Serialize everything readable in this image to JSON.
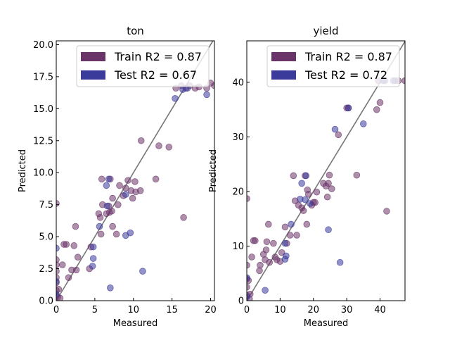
{
  "chart_data": [
    {
      "type": "scatter",
      "title": "ton",
      "xlabel": "Measured",
      "ylabel": "Predicted",
      "xlim": [
        0,
        20.5
      ],
      "ylim": [
        0,
        20.3
      ],
      "xticks": [
        0,
        5,
        10,
        15,
        20
      ],
      "xtick_labels": [
        "0",
        "5",
        "10",
        "15",
        "20"
      ],
      "yticks": [
        0.0,
        2.5,
        5.0,
        7.5,
        10.0,
        12.5,
        15.0,
        17.5,
        20.0
      ],
      "ytick_labels": [
        "0.0",
        "2.5",
        "5.0",
        "7.5",
        "10.0",
        "12.5",
        "15.0",
        "17.5",
        "20.0"
      ],
      "diagonal": true,
      "series": [
        {
          "name": "Train R2 = 0.87",
          "color": "#6b3469",
          "points": [
            [
              0.0,
              7.6
            ],
            [
              0.0,
              3.2
            ],
            [
              0.0,
              2.8
            ],
            [
              0.0,
              2.3
            ],
            [
              0.0,
              1.8
            ],
            [
              0.0,
              1.4
            ],
            [
              0.0,
              0.8
            ],
            [
              0.0,
              0.4
            ],
            [
              0.2,
              0.3
            ],
            [
              0.3,
              0.9
            ],
            [
              0.5,
              0.2
            ],
            [
              0.8,
              2.8
            ],
            [
              1.0,
              4.4
            ],
            [
              1.3,
              4.4
            ],
            [
              1.6,
              1.8
            ],
            [
              2.0,
              2.4
            ],
            [
              2.3,
              4.3
            ],
            [
              2.5,
              5.8
            ],
            [
              2.6,
              2.4
            ],
            [
              2.8,
              3.4
            ],
            [
              4.3,
              2.5
            ],
            [
              4.5,
              4.2
            ],
            [
              5.5,
              6.8
            ],
            [
              5.7,
              6.5
            ],
            [
              5.8,
              5.2
            ],
            [
              5.9,
              9.5
            ],
            [
              6.0,
              7.5
            ],
            [
              6.5,
              6.8
            ],
            [
              6.8,
              7.4
            ],
            [
              6.9,
              6.9
            ],
            [
              7.0,
              9.5
            ],
            [
              7.2,
              7.0
            ],
            [
              7.3,
              8.0
            ],
            [
              7.3,
              5.8
            ],
            [
              7.8,
              5.2
            ],
            [
              8.0,
              7.5
            ],
            [
              8.2,
              9.0
            ],
            [
              8.7,
              8.2
            ],
            [
              9.0,
              8.8
            ],
            [
              9.3,
              9.4
            ],
            [
              9.7,
              8.6
            ],
            [
              9.9,
              8.0
            ],
            [
              10.2,
              9.3
            ],
            [
              10.3,
              8.5
            ],
            [
              10.9,
              8.6
            ],
            [
              11.0,
              12.5
            ],
            [
              12.9,
              9.5
            ],
            [
              13.3,
              12.1
            ],
            [
              14.6,
              12.0
            ],
            [
              15.5,
              16.6
            ],
            [
              16.2,
              16.8
            ],
            [
              16.5,
              6.5
            ],
            [
              16.8,
              16.6
            ],
            [
              17.3,
              16.8
            ],
            [
              18.0,
              16.6
            ],
            [
              18.5,
              16.7
            ],
            [
              19.5,
              16.6
            ],
            [
              20.0,
              17.0
            ],
            [
              20.5,
              16.8
            ]
          ]
        },
        {
          "name": "Test R2 = 0.67",
          "color": "#3b3b9c",
          "points": [
            [
              0.0,
              4.1
            ],
            [
              0.0,
              1.5
            ],
            [
              0.0,
              0.5
            ],
            [
              4.7,
              2.7
            ],
            [
              4.8,
              3.3
            ],
            [
              4.8,
              4.2
            ],
            [
              5.6,
              5.8
            ],
            [
              6.5,
              9.0
            ],
            [
              6.6,
              7.4
            ],
            [
              6.8,
              9.5
            ],
            [
              7.0,
              1.0
            ],
            [
              9.0,
              5.1
            ],
            [
              9.0,
              8.3
            ],
            [
              9.6,
              5.3
            ],
            [
              11.2,
              2.3
            ],
            [
              15.4,
              15.8
            ],
            [
              16.4,
              16.5
            ],
            [
              17.0,
              16.6
            ],
            [
              19.5,
              16.1
            ]
          ]
        }
      ]
    },
    {
      "type": "scatter",
      "title": "yield",
      "xlabel": "Measured",
      "ylabel": "Predicted",
      "xlim": [
        0,
        47.5
      ],
      "ylim": [
        0,
        47.6
      ],
      "xticks": [
        0,
        10,
        20,
        30,
        40
      ],
      "xtick_labels": [
        "0",
        "10",
        "20",
        "30",
        "40"
      ],
      "yticks": [
        0,
        10,
        20,
        30,
        40
      ],
      "ytick_labels": [
        "0",
        "10",
        "20",
        "30",
        "40"
      ],
      "diagonal": true,
      "series": [
        {
          "name": "Train R2 = 0.87",
          "color": "#6b3469",
          "points": [
            [
              0.0,
              18.7
            ],
            [
              0.0,
              6.5
            ],
            [
              0.0,
              4.0
            ],
            [
              0.0,
              2.5
            ],
            [
              0.0,
              1.0
            ],
            [
              0.5,
              3.7
            ],
            [
              0.8,
              0.3
            ],
            [
              1.0,
              1.2
            ],
            [
              1.5,
              8.0
            ],
            [
              2.0,
              11.0
            ],
            [
              2.5,
              11.0
            ],
            [
              3.8,
              5.5
            ],
            [
              4.0,
              6.5
            ],
            [
              5.0,
              8.5
            ],
            [
              5.5,
              7.5
            ],
            [
              5.8,
              9.3
            ],
            [
              6.0,
              10.8
            ],
            [
              6.5,
              14.0
            ],
            [
              6.8,
              7.0
            ],
            [
              8.0,
              10.5
            ],
            [
              8.5,
              8.0
            ],
            [
              9.0,
              7.5
            ],
            [
              10.0,
              7.2
            ],
            [
              10.5,
              8.8
            ],
            [
              11.5,
              13.5
            ],
            [
              12.0,
              10.5
            ],
            [
              13.0,
              12.0
            ],
            [
              14.0,
              22.9
            ],
            [
              14.5,
              18.3
            ],
            [
              15.0,
              12.0
            ],
            [
              15.5,
              17.5
            ],
            [
              16.5,
              17.0
            ],
            [
              17.0,
              16.5
            ],
            [
              17.5,
              22.9
            ],
            [
              18.0,
              14.0
            ],
            [
              18.2,
              20.3
            ],
            [
              18.5,
              19.5
            ],
            [
              19.5,
              17.5
            ],
            [
              20.0,
              18.0
            ],
            [
              20.5,
              18.0
            ],
            [
              21.0,
              19.9
            ],
            [
              23.0,
              21.5
            ],
            [
              23.8,
              21.0
            ],
            [
              24.2,
              19.0
            ],
            [
              24.5,
              21.5
            ],
            [
              24.8,
              23.0
            ],
            [
              25.5,
              20.5
            ],
            [
              27.5,
              30.4
            ],
            [
              30.0,
              35.3
            ],
            [
              30.5,
              35.3
            ],
            [
              33.0,
              23.0
            ],
            [
              39.0,
              35.0
            ],
            [
              39.5,
              40.3
            ],
            [
              40.0,
              36.3
            ],
            [
              41.5,
              40.3
            ],
            [
              42.0,
              16.4
            ],
            [
              44.5,
              40.3
            ],
            [
              45.5,
              40.3
            ],
            [
              47.5,
              40.3
            ]
          ]
        },
        {
          "name": "Test R2 = 0.72",
          "color": "#3b3b9c",
          "points": [
            [
              0.0,
              4.2
            ],
            [
              0.0,
              0.7
            ],
            [
              5.5,
              1.9
            ],
            [
              11.5,
              7.6
            ],
            [
              11.5,
              10.5
            ],
            [
              11.8,
              8.2
            ],
            [
              13.3,
              14.0
            ],
            [
              16.0,
              18.6
            ],
            [
              16.5,
              21.5
            ],
            [
              17.5,
              18.5
            ],
            [
              17.8,
              22.9
            ],
            [
              19.0,
              17.8
            ],
            [
              24.5,
              13.0
            ],
            [
              26.5,
              31.4
            ],
            [
              28.0,
              7.0
            ],
            [
              30.5,
              35.3
            ],
            [
              35.0,
              32.4
            ],
            [
              41.0,
              40.3
            ],
            [
              44.0,
              40.3
            ]
          ]
        }
      ]
    }
  ]
}
